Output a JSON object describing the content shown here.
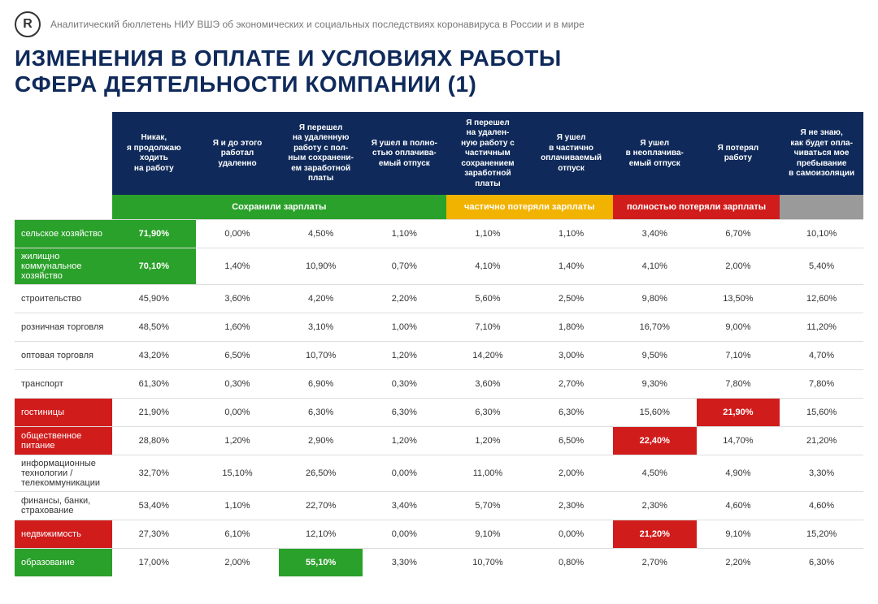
{
  "header": {
    "logo_letter": "R",
    "subtitle": "Аналитический бюллетень НИУ ВШЭ об экономических и социальных последствиях коронавируса в России и в мире",
    "title_line1": "ИЗМЕНЕНИЯ В ОПЛАТЕ И УСЛОВИЯХ РАБОТЫ",
    "title_line2": "СФЕРА ДЕЯТЕЛЬНОСТИ КОМПАНИИ (1)",
    "title_color": "#0f2a5a"
  },
  "colors": {
    "header_bg": "#0f2a5a",
    "green": "#2aa12a",
    "yellow": "#f2b200",
    "red": "#d11c1c",
    "grey": "#9a9a9a",
    "row_border": "#dddddd"
  },
  "table": {
    "columns": [
      "Никак,\nя продолжаю\nходить\nна работу",
      "Я и до этого\nработал\nудаленно",
      "Я перешел\nна удаленную\nработу с пол-\nным сохранени-\nем заработной\nплаты",
      "Я ушел в полно-\nстью оплачива-\nемый отпуск",
      "Я перешел\nна удален-\nную работу с\nчастичным\nсохранением\nзаработной\nплаты",
      "Я ушел\nв частично\nоплачиваемый\nотпуск",
      "Я ушел\nв неоплачива-\nемый отпуск",
      "Я потерял\nработу",
      "Я не знаю,\nкак будет опла-\nчиваться мое\nпребывание\nв самоизоляции"
    ],
    "bands": [
      {
        "label": "Сохранили зарплаты",
        "span": [
          1,
          4
        ],
        "color": "#2aa12a"
      },
      {
        "label": "частично потеряли зарплаты",
        "span": [
          5,
          6
        ],
        "color": "#f2b200"
      },
      {
        "label": "полностью потеряли зарплаты",
        "span": [
          7,
          8
        ],
        "color": "#d11c1c"
      },
      {
        "label": "",
        "span": [
          9,
          9
        ],
        "color": "#9a9a9a"
      }
    ],
    "rows": [
      {
        "label": "сельское хозяйство",
        "cells": [
          "71,90%",
          "0,00%",
          "4,50%",
          "1,10%",
          "1,10%",
          "1,10%",
          "3,40%",
          "6,70%",
          "10,10%"
        ],
        "hi": {
          "0": "label_green",
          "1": "green"
        }
      },
      {
        "label": "жилищно коммунальное хозяйство",
        "cells": [
          "70,10%",
          "1,40%",
          "10,90%",
          "0,70%",
          "4,10%",
          "1,40%",
          "4,10%",
          "2,00%",
          "5,40%"
        ],
        "hi": {
          "0": "label_green",
          "1": "green"
        }
      },
      {
        "label": "строительство",
        "cells": [
          "45,90%",
          "3,60%",
          "4,20%",
          "2,20%",
          "5,60%",
          "2,50%",
          "9,80%",
          "13,50%",
          "12,60%"
        ]
      },
      {
        "label": "розничная торговля",
        "cells": [
          "48,50%",
          "1,60%",
          "3,10%",
          "1,00%",
          "7,10%",
          "1,80%",
          "16,70%",
          "9,00%",
          "11,20%"
        ]
      },
      {
        "label": "оптовая торговля",
        "cells": [
          "43,20%",
          "6,50%",
          "10,70%",
          "1,20%",
          "14,20%",
          "3,00%",
          "9,50%",
          "7,10%",
          "4,70%"
        ]
      },
      {
        "label": "транспорт",
        "cells": [
          "61,30%",
          "0,30%",
          "6,90%",
          "0,30%",
          "3,60%",
          "2,70%",
          "9,30%",
          "7,80%",
          "7,80%"
        ]
      },
      {
        "label": "гостиницы",
        "cells": [
          "21,90%",
          "0,00%",
          "6,30%",
          "6,30%",
          "6,30%",
          "6,30%",
          "15,60%",
          "21,90%",
          "15,60%"
        ],
        "hi": {
          "0": "label_red",
          "8": "red"
        }
      },
      {
        "label": "общественное питание",
        "cells": [
          "28,80%",
          "1,20%",
          "2,90%",
          "1,20%",
          "1,20%",
          "6,50%",
          "22,40%",
          "14,70%",
          "21,20%"
        ],
        "hi": {
          "0": "label_red",
          "7": "red"
        }
      },
      {
        "label": "информационные технологии / телекоммуникации",
        "cells": [
          "32,70%",
          "15,10%",
          "26,50%",
          "0,00%",
          "11,00%",
          "2,00%",
          "4,50%",
          "4,90%",
          "3,30%"
        ]
      },
      {
        "label": "финансы, банки, страхование",
        "cells": [
          "53,40%",
          "1,10%",
          "22,70%",
          "3,40%",
          "5,70%",
          "2,30%",
          "2,30%",
          "4,60%",
          "4,60%"
        ]
      },
      {
        "label": "недвижимость",
        "cells": [
          "27,30%",
          "6,10%",
          "12,10%",
          "0,00%",
          "9,10%",
          "0,00%",
          "21,20%",
          "9,10%",
          "15,20%"
        ],
        "hi": {
          "0": "label_red",
          "7": "red"
        }
      },
      {
        "label": "образование",
        "cells": [
          "17,00%",
          "2,00%",
          "55,10%",
          "3,30%",
          "10,70%",
          "0,80%",
          "2,70%",
          "2,20%",
          "6,30%"
        ],
        "hi": {
          "0": "label_green",
          "3": "green"
        }
      }
    ]
  }
}
